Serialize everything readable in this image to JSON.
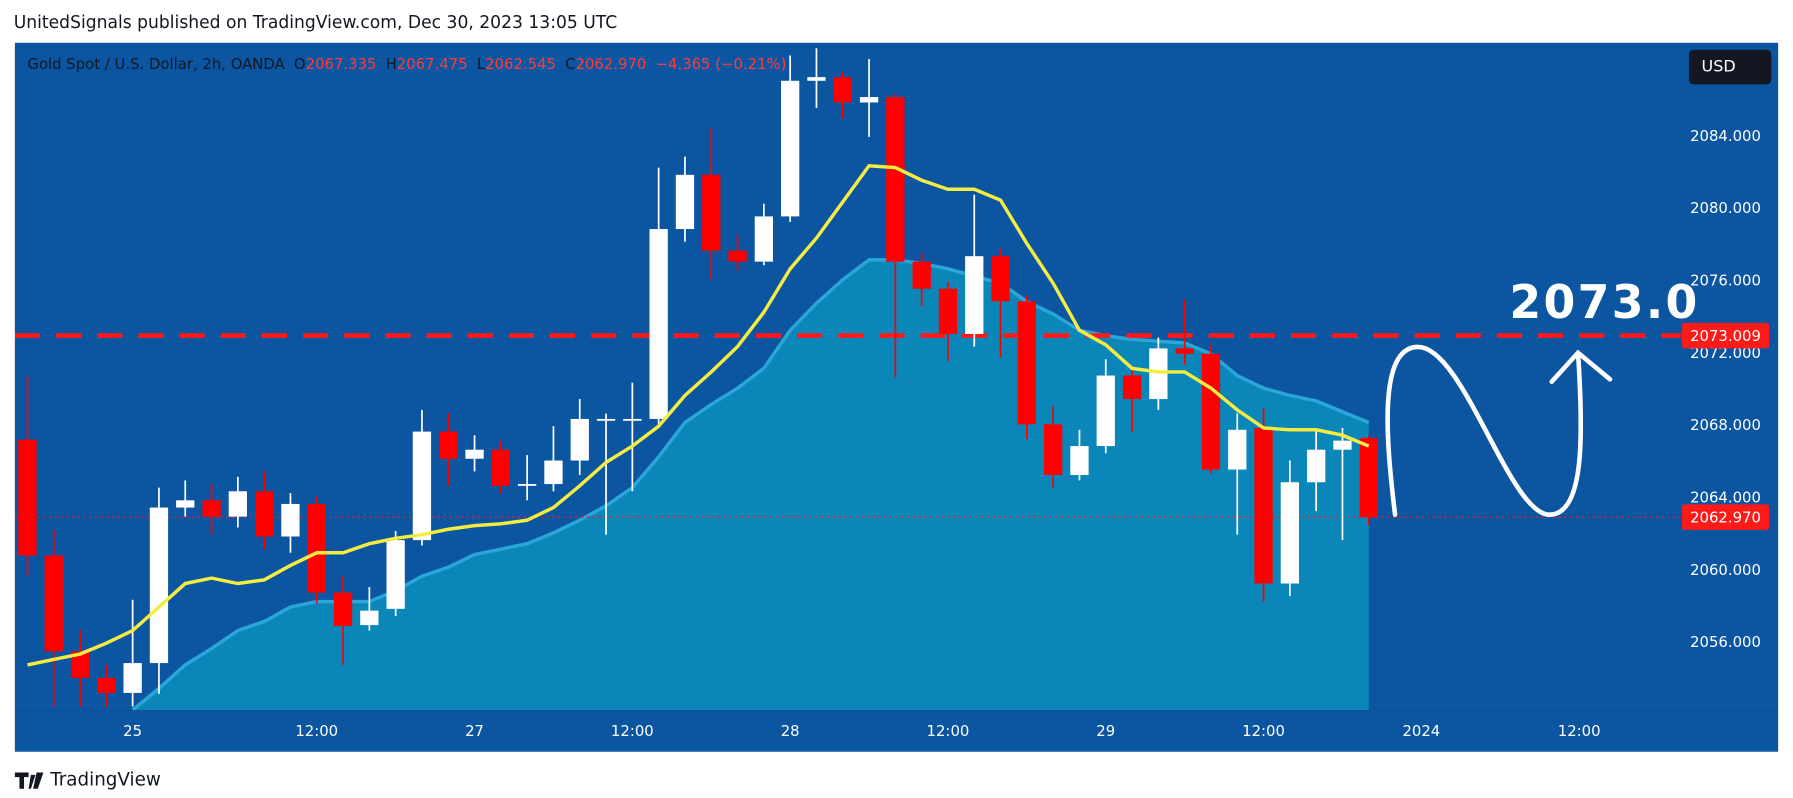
{
  "header": {
    "title": "UnitedSignals published on TradingView.com, Dec 30, 2023 13:05 UTC"
  },
  "footer": {
    "brand": "TradingView"
  },
  "currency_button": "USD",
  "chart_data": {
    "type": "candlestick",
    "legend": {
      "symbol": "Gold Spot / U.S. Dollar, 2h, OANDA",
      "fields": [
        {
          "key": "O",
          "value": "2067.335"
        },
        {
          "key": "H",
          "value": "2067.475"
        },
        {
          "key": "L",
          "value": "2062.545"
        },
        {
          "key": "C",
          "value": "2062.970"
        }
      ],
      "change": "−4.365 (−0.21%)"
    },
    "categories": [
      null,
      null,
      null,
      null,
      "25",
      null,
      null,
      null,
      null,
      null,
      null,
      "12:00",
      null,
      null,
      null,
      null,
      null,
      "27",
      null,
      null,
      null,
      null,
      null,
      "12:00",
      null,
      null,
      null,
      null,
      null,
      "28",
      null,
      null,
      null,
      null,
      null,
      "12:00",
      null,
      null,
      null,
      null,
      null,
      "29",
      null,
      null,
      null,
      null,
      null,
      "12:00",
      null,
      null,
      null,
      null,
      null,
      "2024",
      null,
      null,
      null,
      null,
      null,
      "12:00"
    ],
    "open": [
      2067.25,
      2060.85,
      2055.55,
      2054.08,
      2053.25,
      2054.9,
      2063.5,
      2063.9,
      2063.0,
      2064.4,
      2061.9,
      2063.7,
      2058.8,
      2057.0,
      2057.9,
      2061.7,
      2067.7,
      2066.2,
      2066.7,
      2064.7,
      2064.8,
      2066.1,
      2068.3,
      2068.3,
      2068.4,
      2078.9,
      2081.9,
      2077.7,
      2077.1,
      2079.6,
      2087.1,
      2087.3,
      2085.9,
      2086.2,
      2077.1,
      2075.6,
      2073.1,
      2077.4,
      2074.9,
      2068.1,
      2065.3,
      2066.9,
      2070.8,
      2069.5,
      2072.3,
      2072.0,
      2065.6,
      2067.9,
      2059.3,
      2064.9,
      2066.7,
      2067.335,
      null,
      null,
      null,
      null,
      null,
      null,
      null,
      null
    ],
    "high": [
      2070.76,
      2062.26,
      2056.7,
      2054.8,
      2058.4,
      2064.6,
      2065.0,
      2064.8,
      2065.2,
      2065.5,
      2064.3,
      2064.1,
      2059.7,
      2059.1,
      2062.2,
      2068.9,
      2068.7,
      2067.5,
      2067.2,
      2066.4,
      2068.0,
      2069.5,
      2068.7,
      2070.4,
      2082.3,
      2082.9,
      2084.5,
      2078.6,
      2080.3,
      2088.5,
      2088.9,
      2087.6,
      2088.3,
      2086.4,
      2077.6,
      2076.0,
      2080.8,
      2077.8,
      2075.2,
      2069.1,
      2067.8,
      2071.7,
      2071.1,
      2072.9,
      2075.0,
      2072.5,
      2068.7,
      2069.0,
      2066.1,
      2067.9,
      2067.9,
      2067.475,
      null,
      null,
      null,
      null,
      null,
      null,
      null,
      null
    ],
    "low": [
      2059.7,
      2052.5,
      2052.5,
      2052.5,
      2052.5,
      2053.2,
      2063.0,
      2062.0,
      2062.4,
      2061.2,
      2061.0,
      2058.2,
      2054.8,
      2056.7,
      2057.5,
      2061.4,
      2064.7,
      2065.5,
      2064.3,
      2063.9,
      2064.4,
      2065.3,
      2062.0,
      2064.4,
      2068.0,
      2078.2,
      2076.1,
      2076.6,
      2076.9,
      2079.3,
      2085.6,
      2085.0,
      2084.0,
      2070.7,
      2074.6,
      2071.6,
      2072.4,
      2071.8,
      2067.3,
      2064.6,
      2065.0,
      2066.5,
      2067.7,
      2068.9,
      2071.4,
      2065.4,
      2062.0,
      2058.3,
      2058.6,
      2063.3,
      2061.7,
      2062.545,
      null,
      null,
      null,
      null,
      null,
      null,
      null,
      null
    ],
    "close": [
      2060.85,
      2055.55,
      2054.08,
      2053.25,
      2054.9,
      2063.5,
      2063.9,
      2063.0,
      2064.4,
      2061.9,
      2063.7,
      2058.8,
      2056.95,
      2057.8,
      2061.7,
      2067.7,
      2066.2,
      2066.7,
      2064.7,
      2064.8,
      2066.1,
      2068.4,
      2068.4,
      2068.4,
      2078.9,
      2081.9,
      2077.7,
      2077.1,
      2079.6,
      2087.1,
      2087.3,
      2085.9,
      2086.2,
      2077.1,
      2075.6,
      2073.1,
      2077.4,
      2074.9,
      2068.1,
      2065.3,
      2066.9,
      2070.8,
      2069.5,
      2072.3,
      2072.0,
      2065.6,
      2067.8,
      2059.3,
      2064.9,
      2066.7,
      2067.2,
      2062.97,
      null,
      null,
      null,
      null,
      null,
      null,
      null,
      null
    ],
    "up_color": "#ffffff",
    "down_color": "#ff0000",
    "overlays": [
      {
        "kind": "area",
        "color": "#0a86b9",
        "values": [
          null,
          null,
          null,
          null,
          2052.3,
          2053.5,
          2054.8,
          2055.7,
          2056.7,
          2057.2,
          2058.0,
          2058.3,
          2058.3,
          2058.3,
          2058.9,
          2059.7,
          2060.2,
          2060.9,
          2061.2,
          2061.5,
          2062.1,
          2062.8,
          2063.6,
          2064.6,
          2066.3,
          2068.2,
          2069.2,
          2070.1,
          2071.2,
          2073.3,
          2074.8,
          2076.1,
          2077.2,
          2077.2,
          2077.0,
          2076.7,
          2076.3,
          2075.9,
          2074.9,
          2074.2,
          2073.3,
          2073.0,
          2072.8,
          2072.7,
          2072.6,
          2072.0,
          2070.8,
          2070.1,
          2069.7,
          2069.4,
          2068.8,
          2068.2,
          null,
          null,
          null,
          null,
          null,
          null,
          null,
          null
        ]
      },
      {
        "kind": "line",
        "color": "#f5ec42",
        "values": [
          2054.8,
          2055.1,
          2055.4,
          2056.0,
          2056.7,
          2058.0,
          2059.3,
          2059.6,
          2059.3,
          2059.5,
          2060.3,
          2061.0,
          2061.0,
          2061.5,
          2061.8,
          2062.0,
          2062.3,
          2062.5,
          2062.6,
          2062.8,
          2063.5,
          2064.7,
          2066.0,
          2066.9,
          2068.0,
          2069.7,
          2071.0,
          2072.4,
          2074.3,
          2076.7,
          2078.4,
          2080.4,
          2082.4,
          2082.3,
          2081.6,
          2081.1,
          2081.1,
          2080.5,
          2078.1,
          2075.9,
          2073.3,
          2072.5,
          2071.2,
          2071.0,
          2071.0,
          2070.1,
          2068.9,
          2067.9,
          2067.8,
          2067.8,
          2067.5,
          2066.9,
          null,
          null,
          null,
          null,
          null,
          null,
          null,
          null
        ]
      }
    ],
    "ylim": [
      2052.3,
      2089.2
    ],
    "yticks": [
      {
        "value": 2056,
        "label": "2056.000"
      },
      {
        "value": 2060,
        "label": "2060.000"
      },
      {
        "value": 2064,
        "label": "2064.000"
      },
      {
        "value": 2068,
        "label": "2068.000"
      },
      {
        "value": 2072,
        "label": "2072.000"
      },
      {
        "value": 2076,
        "label": "2076.000"
      },
      {
        "value": 2080,
        "label": "2080.000"
      },
      {
        "value": 2084,
        "label": "2084.000"
      }
    ],
    "levels": [
      {
        "value": 2073.009,
        "label": "2073.009",
        "color": "#ff1a1a",
        "style": "dashed"
      },
      {
        "value": 2062.97,
        "label": "2062.970",
        "color": "#ff1a1a",
        "style": "dotted"
      }
    ],
    "annotation": "2073.0"
  }
}
